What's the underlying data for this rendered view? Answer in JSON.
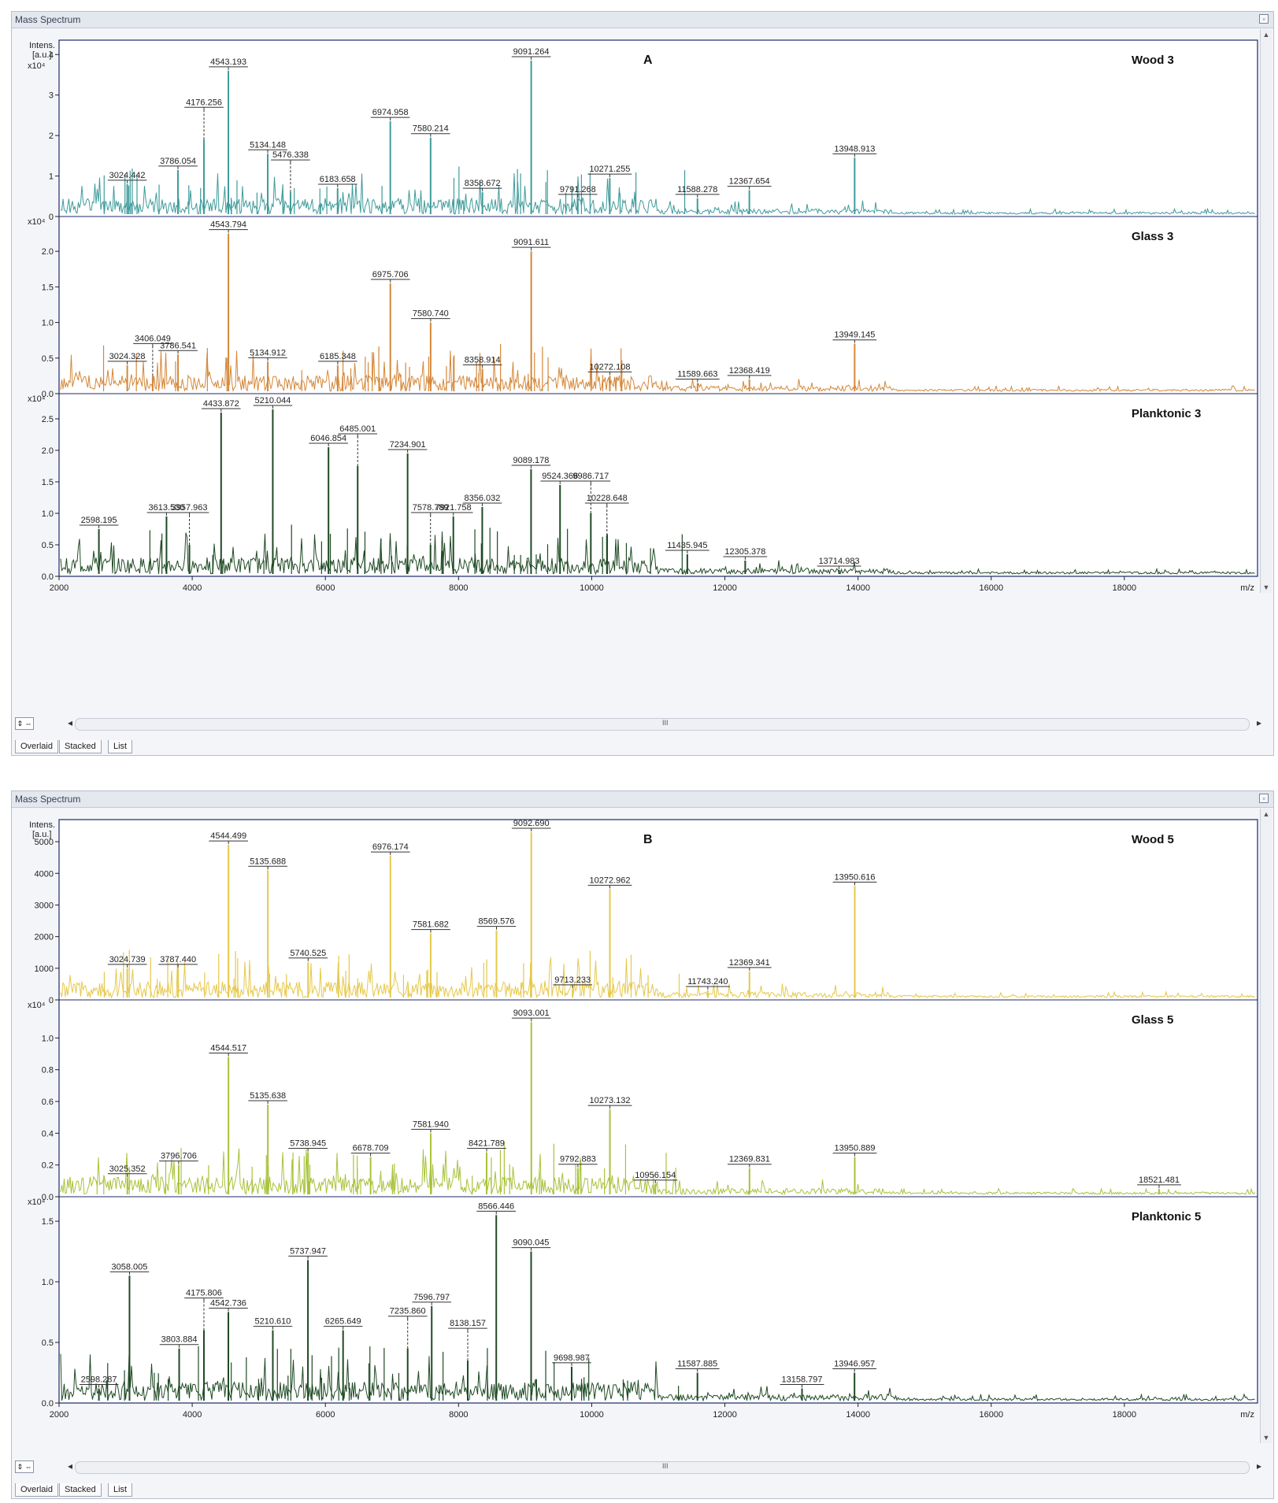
{
  "window": {
    "title": "Mass Spectrum",
    "restore_icon": "restore-icon"
  },
  "tabs": [
    "Overlaid",
    "Stacked",
    "List"
  ],
  "scroll_grip": "III",
  "axis_unit": "m/z",
  "chart_data": [
    {
      "type": "line",
      "panel": "A",
      "xlabel": "m/z",
      "ylabel": "Intens. [a.u.]",
      "xlim": [
        2000,
        20000
      ],
      "xticks": [
        "2000",
        "4000",
        "6000",
        "8000",
        "10000",
        "12000",
        "14000",
        "16000",
        "18000"
      ],
      "series": [
        {
          "name": "Wood 3",
          "color": "#3f9b9b",
          "scale_label": "x10⁴",
          "ylim": [
            0,
            4.2
          ],
          "ytick_values": [
            0,
            1,
            2,
            3,
            4
          ],
          "ytick_labels": [
            "0",
            "1",
            "2",
            "3",
            "4"
          ],
          "peaks": [
            {
              "mz": 3024.442,
              "intensity": 0.8,
              "label": "3024.442"
            },
            {
              "mz": 3786.054,
              "intensity": 1.15,
              "label": "3786.054"
            },
            {
              "mz": 4176.256,
              "intensity": 1.9,
              "label": "4176.256",
              "dashed": true
            },
            {
              "mz": 4543.193,
              "intensity": 3.6,
              "label": "4543.193"
            },
            {
              "mz": 5134.148,
              "intensity": 1.55,
              "label": "5134.148"
            },
            {
              "mz": 5476.338,
              "intensity": 0.6,
              "label": "5476.338",
              "dashed": true
            },
            {
              "mz": 6183.658,
              "intensity": 0.7,
              "label": "6183.658"
            },
            {
              "mz": 6974.958,
              "intensity": 2.35,
              "label": "6974.958"
            },
            {
              "mz": 7580.214,
              "intensity": 1.95,
              "label": "7580.214"
            },
            {
              "mz": 8358.672,
              "intensity": 0.6,
              "label": "8358.672"
            },
            {
              "mz": 9091.264,
              "intensity": 3.85,
              "label": "9091.264"
            },
            {
              "mz": 9791.268,
              "intensity": 0.45,
              "label": "9791.268"
            },
            {
              "mz": 10271.255,
              "intensity": 0.95,
              "label": "10271.255"
            },
            {
              "mz": 11588.278,
              "intensity": 0.45,
              "label": "11588.278"
            },
            {
              "mz": 12367.654,
              "intensity": 0.65,
              "label": "12367.654"
            },
            {
              "mz": 13948.913,
              "intensity": 1.45,
              "label": "13948.913"
            }
          ]
        },
        {
          "name": "Glass 3",
          "color": "#d4883a",
          "scale_label": "x10⁴",
          "ylim": [
            0,
            2.4
          ],
          "ytick_values": [
            0,
            0.5,
            1.0,
            1.5,
            2.0
          ],
          "ytick_labels": [
            "0.0",
            "0.5",
            "1.0",
            "1.5",
            "2.0"
          ],
          "peaks": [
            {
              "mz": 3024.328,
              "intensity": 0.4,
              "label": "3024.328"
            },
            {
              "mz": 3406.049,
              "intensity": 0.25,
              "label": "3406.049",
              "dashed": true
            },
            {
              "mz": 3786.541,
              "intensity": 0.55,
              "label": "3786.541"
            },
            {
              "mz": 4543.794,
              "intensity": 2.25,
              "label": "4543.794"
            },
            {
              "mz": 5134.912,
              "intensity": 0.45,
              "label": "5134.912"
            },
            {
              "mz": 6185.348,
              "intensity": 0.4,
              "label": "6185.348"
            },
            {
              "mz": 6975.706,
              "intensity": 1.55,
              "label": "6975.706"
            },
            {
              "mz": 7580.74,
              "intensity": 1.0,
              "label": "7580.740"
            },
            {
              "mz": 8358.914,
              "intensity": 0.35,
              "label": "8358.914"
            },
            {
              "mz": 9091.611,
              "intensity": 2.0,
              "label": "9091.611"
            },
            {
              "mz": 10272.108,
              "intensity": 0.25,
              "label": "10272.108"
            },
            {
              "mz": 11589.663,
              "intensity": 0.15,
              "label": "11589.663"
            },
            {
              "mz": 12368.419,
              "intensity": 0.2,
              "label": "12368.419"
            },
            {
              "mz": 13949.145,
              "intensity": 0.7,
              "label": "13949.145"
            }
          ]
        },
        {
          "name": "Planktonic 3",
          "color": "#1f4a24",
          "scale_label": "x10⁴",
          "ylim": [
            0,
            2.8
          ],
          "ytick_values": [
            0,
            0.5,
            1.0,
            1.5,
            2.0,
            2.5
          ],
          "ytick_labels": [
            "0.0",
            "0.5",
            "1.0",
            "1.5",
            "2.0",
            "2.5"
          ],
          "peaks": [
            {
              "mz": 2598.195,
              "intensity": 0.75,
              "label": "2598.195"
            },
            {
              "mz": 3613.53,
              "intensity": 0.95,
              "label": "3613.530"
            },
            {
              "mz": 3957.963,
              "intensity": 0.5,
              "label": "3957.963",
              "dashed": true
            },
            {
              "mz": 4433.872,
              "intensity": 2.6,
              "label": "4433.872"
            },
            {
              "mz": 5210.044,
              "intensity": 2.65,
              "label": "5210.044"
            },
            {
              "mz": 6046.854,
              "intensity": 2.05,
              "label": "6046.854"
            },
            {
              "mz": 6485.001,
              "intensity": 1.75,
              "label": "6485.001",
              "dashed": true
            },
            {
              "mz": 7234.901,
              "intensity": 1.95,
              "label": "7234.901"
            },
            {
              "mz": 7578.789,
              "intensity": 0.5,
              "label": "7578.789",
              "dashed": true
            },
            {
              "mz": 7921.758,
              "intensity": 0.95,
              "label": "7921.758"
            },
            {
              "mz": 8356.032,
              "intensity": 1.1,
              "label": "8356.032"
            },
            {
              "mz": 9089.178,
              "intensity": 1.7,
              "label": "9089.178"
            },
            {
              "mz": 9524.366,
              "intensity": 1.45,
              "label": "9524.366"
            },
            {
              "mz": 9986.717,
              "intensity": 1.0,
              "label": "9986.717",
              "dashed": true
            },
            {
              "mz": 10228.648,
              "intensity": 0.65,
              "label": "10228.648",
              "dashed": true
            },
            {
              "mz": 11435.945,
              "intensity": 0.35,
              "label": "11435.945"
            },
            {
              "mz": 12305.378,
              "intensity": 0.25,
              "label": "12305.378"
            },
            {
              "mz": 13714.983,
              "intensity": 0.1,
              "label": "13714.983"
            }
          ]
        }
      ]
    },
    {
      "type": "line",
      "panel": "B",
      "xlabel": "m/z",
      "ylabel": "Intens. [a.u.]",
      "xlim": [
        2000,
        20000
      ],
      "xticks": [
        "2000",
        "4000",
        "6000",
        "8000",
        "10000",
        "12000",
        "14000",
        "16000",
        "18000"
      ],
      "series": [
        {
          "name": "Wood 5",
          "color": "#e6c84a",
          "scale_label": "",
          "ylim": [
            0,
            5500
          ],
          "ytick_values": [
            0,
            1000,
            2000,
            3000,
            4000,
            5000
          ],
          "ytick_labels": [
            "0",
            "1000",
            "2000",
            "3000",
            "4000",
            "5000"
          ],
          "peaks": [
            {
              "mz": 3024.739,
              "intensity": 1000,
              "label": "3024.739"
            },
            {
              "mz": 3787.44,
              "intensity": 1000,
              "label": "3787.440"
            },
            {
              "mz": 4544.499,
              "intensity": 4900,
              "label": "4544.499"
            },
            {
              "mz": 5135.688,
              "intensity": 4100,
              "label": "5135.688"
            },
            {
              "mz": 5740.525,
              "intensity": 1200,
              "label": "5740.525"
            },
            {
              "mz": 6976.174,
              "intensity": 4550,
              "label": "6976.174"
            },
            {
              "mz": 7581.682,
              "intensity": 2100,
              "label": "7581.682"
            },
            {
              "mz": 8569.576,
              "intensity": 2200,
              "label": "8569.576"
            },
            {
              "mz": 9092.69,
              "intensity": 5300,
              "label": "9092.690"
            },
            {
              "mz": 9713.233,
              "intensity": 350,
              "label": "9713.233"
            },
            {
              "mz": 10272.962,
              "intensity": 3500,
              "label": "10272.962"
            },
            {
              "mz": 11743.24,
              "intensity": 300,
              "label": "11743.240"
            },
            {
              "mz": 12369.341,
              "intensity": 900,
              "label": "12369.341"
            },
            {
              "mz": 13950.616,
              "intensity": 3600,
              "label": "13950.616"
            }
          ]
        },
        {
          "name": "Glass 5",
          "color": "#a8c23a",
          "scale_label": "x10⁴",
          "ylim": [
            0,
            1.2
          ],
          "ytick_values": [
            0,
            0.2,
            0.4,
            0.6,
            0.8,
            1.0
          ],
          "ytick_labels": [
            "0.0",
            "0.2",
            "0.4",
            "0.6",
            "0.8",
            "1.0"
          ],
          "peaks": [
            {
              "mz": 3025.352,
              "intensity": 0.12,
              "label": "3025.352"
            },
            {
              "mz": 3796.706,
              "intensity": 0.2,
              "label": "3796.706"
            },
            {
              "mz": 4544.517,
              "intensity": 0.88,
              "label": "4544.517"
            },
            {
              "mz": 5135.638,
              "intensity": 0.58,
              "label": "5135.638"
            },
            {
              "mz": 5738.945,
              "intensity": 0.28,
              "label": "5738.945"
            },
            {
              "mz": 6678.709,
              "intensity": 0.25,
              "label": "6678.709"
            },
            {
              "mz": 7581.94,
              "intensity": 0.4,
              "label": "7581.940"
            },
            {
              "mz": 8421.789,
              "intensity": 0.28,
              "label": "8421.789"
            },
            {
              "mz": 9093.001,
              "intensity": 1.1,
              "label": "9093.001"
            },
            {
              "mz": 9792.883,
              "intensity": 0.18,
              "label": "9792.883"
            },
            {
              "mz": 10273.132,
              "intensity": 0.55,
              "label": "10273.132"
            },
            {
              "mz": 10956.154,
              "intensity": 0.08,
              "label": "10956.154"
            },
            {
              "mz": 12369.831,
              "intensity": 0.18,
              "label": "12369.831"
            },
            {
              "mz": 13950.889,
              "intensity": 0.25,
              "label": "13950.889"
            },
            {
              "mz": 18521.481,
              "intensity": 0.05,
              "label": "18521.481"
            }
          ]
        },
        {
          "name": "Planktonic 5",
          "color": "#1f4a24",
          "scale_label": "x10⁴",
          "ylim": [
            0,
            1.65
          ],
          "ytick_values": [
            0,
            0.5,
            1.0,
            1.5
          ],
          "ytick_labels": [
            "0.0",
            "0.5",
            "1.0",
            "1.5"
          ],
          "peaks": [
            {
              "mz": 2598.287,
              "intensity": 0.12,
              "label": "2598.287"
            },
            {
              "mz": 3058.005,
              "intensity": 1.05,
              "label": "3058.005"
            },
            {
              "mz": 3803.884,
              "intensity": 0.45,
              "label": "3803.884"
            },
            {
              "mz": 4175.806,
              "intensity": 0.6,
              "label": "4175.806",
              "dashed": true
            },
            {
              "mz": 4542.736,
              "intensity": 0.75,
              "label": "4542.736"
            },
            {
              "mz": 5210.61,
              "intensity": 0.6,
              "label": "5210.610"
            },
            {
              "mz": 5737.947,
              "intensity": 1.18,
              "label": "5737.947"
            },
            {
              "mz": 6265.649,
              "intensity": 0.6,
              "label": "6265.649"
            },
            {
              "mz": 7235.86,
              "intensity": 0.45,
              "label": "7235.860",
              "dashed": true
            },
            {
              "mz": 7596.797,
              "intensity": 0.8,
              "label": "7596.797"
            },
            {
              "mz": 8138.157,
              "intensity": 0.35,
              "label": "8138.157",
              "dashed": true
            },
            {
              "mz": 8566.446,
              "intensity": 1.55,
              "label": "8566.446"
            },
            {
              "mz": 9090.045,
              "intensity": 1.25,
              "label": "9090.045"
            },
            {
              "mz": 9698.987,
              "intensity": 0.3,
              "label": "9698.987"
            },
            {
              "mz": 11587.885,
              "intensity": 0.25,
              "label": "11587.885"
            },
            {
              "mz": 13158.797,
              "intensity": 0.12,
              "label": "13158.797"
            },
            {
              "mz": 13946.957,
              "intensity": 0.25,
              "label": "13946.957"
            }
          ]
        }
      ]
    }
  ]
}
